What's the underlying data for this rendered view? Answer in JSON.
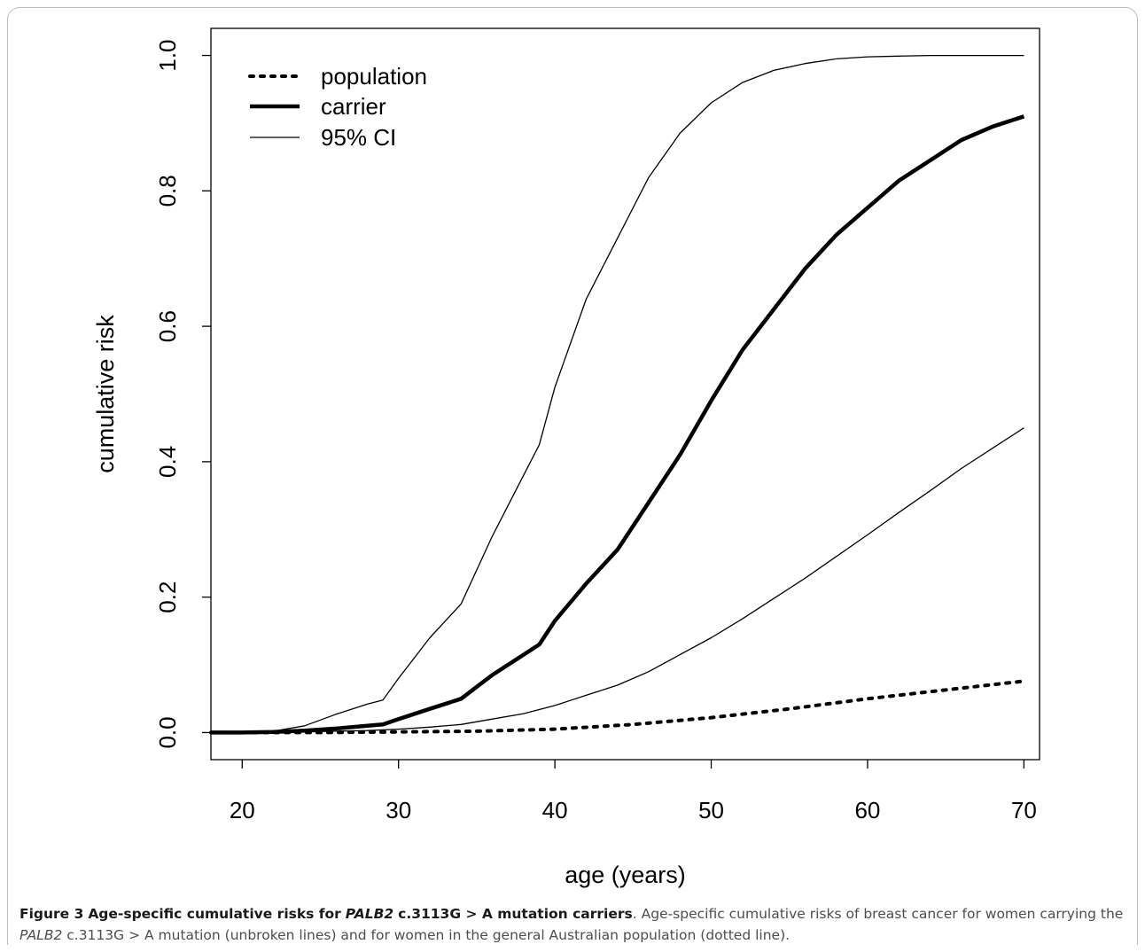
{
  "chart_data": {
    "type": "line",
    "xlabel": "age (years)",
    "ylabel": "cumulative risk",
    "xlim": [
      18,
      71
    ],
    "ylim": [
      -0.04,
      1.04
    ],
    "x_ticks": [
      20,
      30,
      40,
      50,
      60,
      70
    ],
    "x_tick_labels": [
      "20",
      "30",
      "40",
      "50",
      "60",
      "70"
    ],
    "y_ticks": [
      0.0,
      0.2,
      0.4,
      0.6,
      0.8,
      1.0
    ],
    "y_tick_labels": [
      "0.0",
      "0.2",
      "0.4",
      "0.6",
      "0.8",
      "1.0"
    ],
    "grid": false,
    "legend_position": "top-left",
    "legend": [
      {
        "label": "population",
        "style": "dotted"
      },
      {
        "label": "carrier",
        "style": "thick"
      },
      {
        "label": "95% CI",
        "style": "thin"
      }
    ],
    "series": [
      {
        "name": "population",
        "style": "dotted",
        "x": [
          18,
          20,
          25,
          30,
          35,
          40,
          45,
          50,
          55,
          60,
          65,
          70
        ],
        "y": [
          0.0,
          0.0,
          0.0,
          0.001,
          0.002,
          0.005,
          0.012,
          0.022,
          0.035,
          0.05,
          0.063,
          0.076
        ]
      },
      {
        "name": "carrier",
        "style": "thick",
        "x": [
          18,
          20,
          22,
          24,
          26,
          28,
          29,
          30,
          32,
          34,
          36,
          38,
          39,
          40,
          42,
          44,
          46,
          48,
          50,
          52,
          54,
          56,
          58,
          60,
          62,
          64,
          66,
          68,
          70
        ],
        "y": [
          0.0,
          0.0,
          0.001,
          0.003,
          0.006,
          0.01,
          0.012,
          0.02,
          0.035,
          0.05,
          0.085,
          0.115,
          0.13,
          0.165,
          0.22,
          0.27,
          0.34,
          0.41,
          0.49,
          0.565,
          0.625,
          0.685,
          0.735,
          0.775,
          0.815,
          0.845,
          0.875,
          0.895,
          0.91
        ]
      },
      {
        "name": "95% CI upper",
        "style": "thin",
        "x": [
          18,
          20,
          22,
          24,
          26,
          28,
          29,
          30,
          32,
          34,
          36,
          38,
          39,
          40,
          42,
          44,
          46,
          48,
          50,
          52,
          54,
          56,
          58,
          60,
          62,
          64,
          66,
          68,
          70
        ],
        "y": [
          0.0,
          0.0,
          0.002,
          0.01,
          0.027,
          0.042,
          0.048,
          0.08,
          0.14,
          0.19,
          0.29,
          0.38,
          0.425,
          0.51,
          0.64,
          0.73,
          0.82,
          0.885,
          0.93,
          0.96,
          0.978,
          0.988,
          0.995,
          0.998,
          0.999,
          1.0,
          1.0,
          1.0,
          1.0
        ]
      },
      {
        "name": "95% CI lower",
        "style": "thin",
        "x": [
          18,
          20,
          22,
          24,
          26,
          28,
          30,
          32,
          34,
          36,
          38,
          40,
          42,
          44,
          46,
          48,
          50,
          52,
          54,
          56,
          58,
          60,
          62,
          64,
          66,
          68,
          70
        ],
        "y": [
          0.0,
          0.0,
          0.0,
          0.001,
          0.002,
          0.003,
          0.005,
          0.008,
          0.012,
          0.02,
          0.028,
          0.04,
          0.055,
          0.07,
          0.09,
          0.115,
          0.14,
          0.168,
          0.198,
          0.228,
          0.26,
          0.292,
          0.325,
          0.357,
          0.39,
          0.42,
          0.45
        ]
      }
    ]
  },
  "caption": {
    "figure_label": "Figure 3",
    "title_part1": "Age-specific cumulative risks for",
    "title_gene": "PALB2",
    "title_part2": "c.3113G > A mutation carriers",
    "text_part1": ". Age-specific cumulative risks of breast cancer for women carrying the",
    "text_gene": "PALB2",
    "text_part2": "c.3113G > A mutation (unbroken lines) and for women in the general Australian population (dotted line)."
  }
}
